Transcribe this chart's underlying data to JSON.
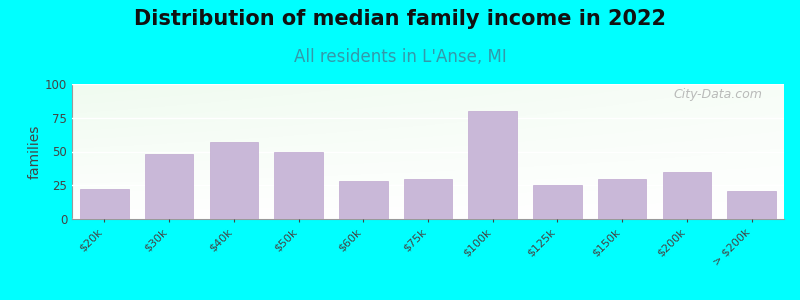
{
  "title": "Distribution of median family income in 2022",
  "subtitle": "All residents in L'Anse, MI",
  "ylabel": "families",
  "categories": [
    "$20k",
    "$30k",
    "$40k",
    "$50k",
    "$60k",
    "$75k",
    "$100k",
    "$125k",
    "$150k",
    "$200k",
    "> $200k"
  ],
  "values": [
    22,
    48,
    57,
    50,
    28,
    30,
    80,
    25,
    30,
    35,
    21
  ],
  "bar_color": "#c9b8d8",
  "bar_edge_color": "#c0a8d0",
  "background_color": "#00ffff",
  "grid_color": "#ffffff",
  "ylim": [
    0,
    100
  ],
  "yticks": [
    0,
    25,
    50,
    75,
    100
  ],
  "title_fontsize": 15,
  "subtitle_fontsize": 12,
  "subtitle_color": "#3399aa",
  "ylabel_fontsize": 10,
  "watermark": "City-Data.com"
}
